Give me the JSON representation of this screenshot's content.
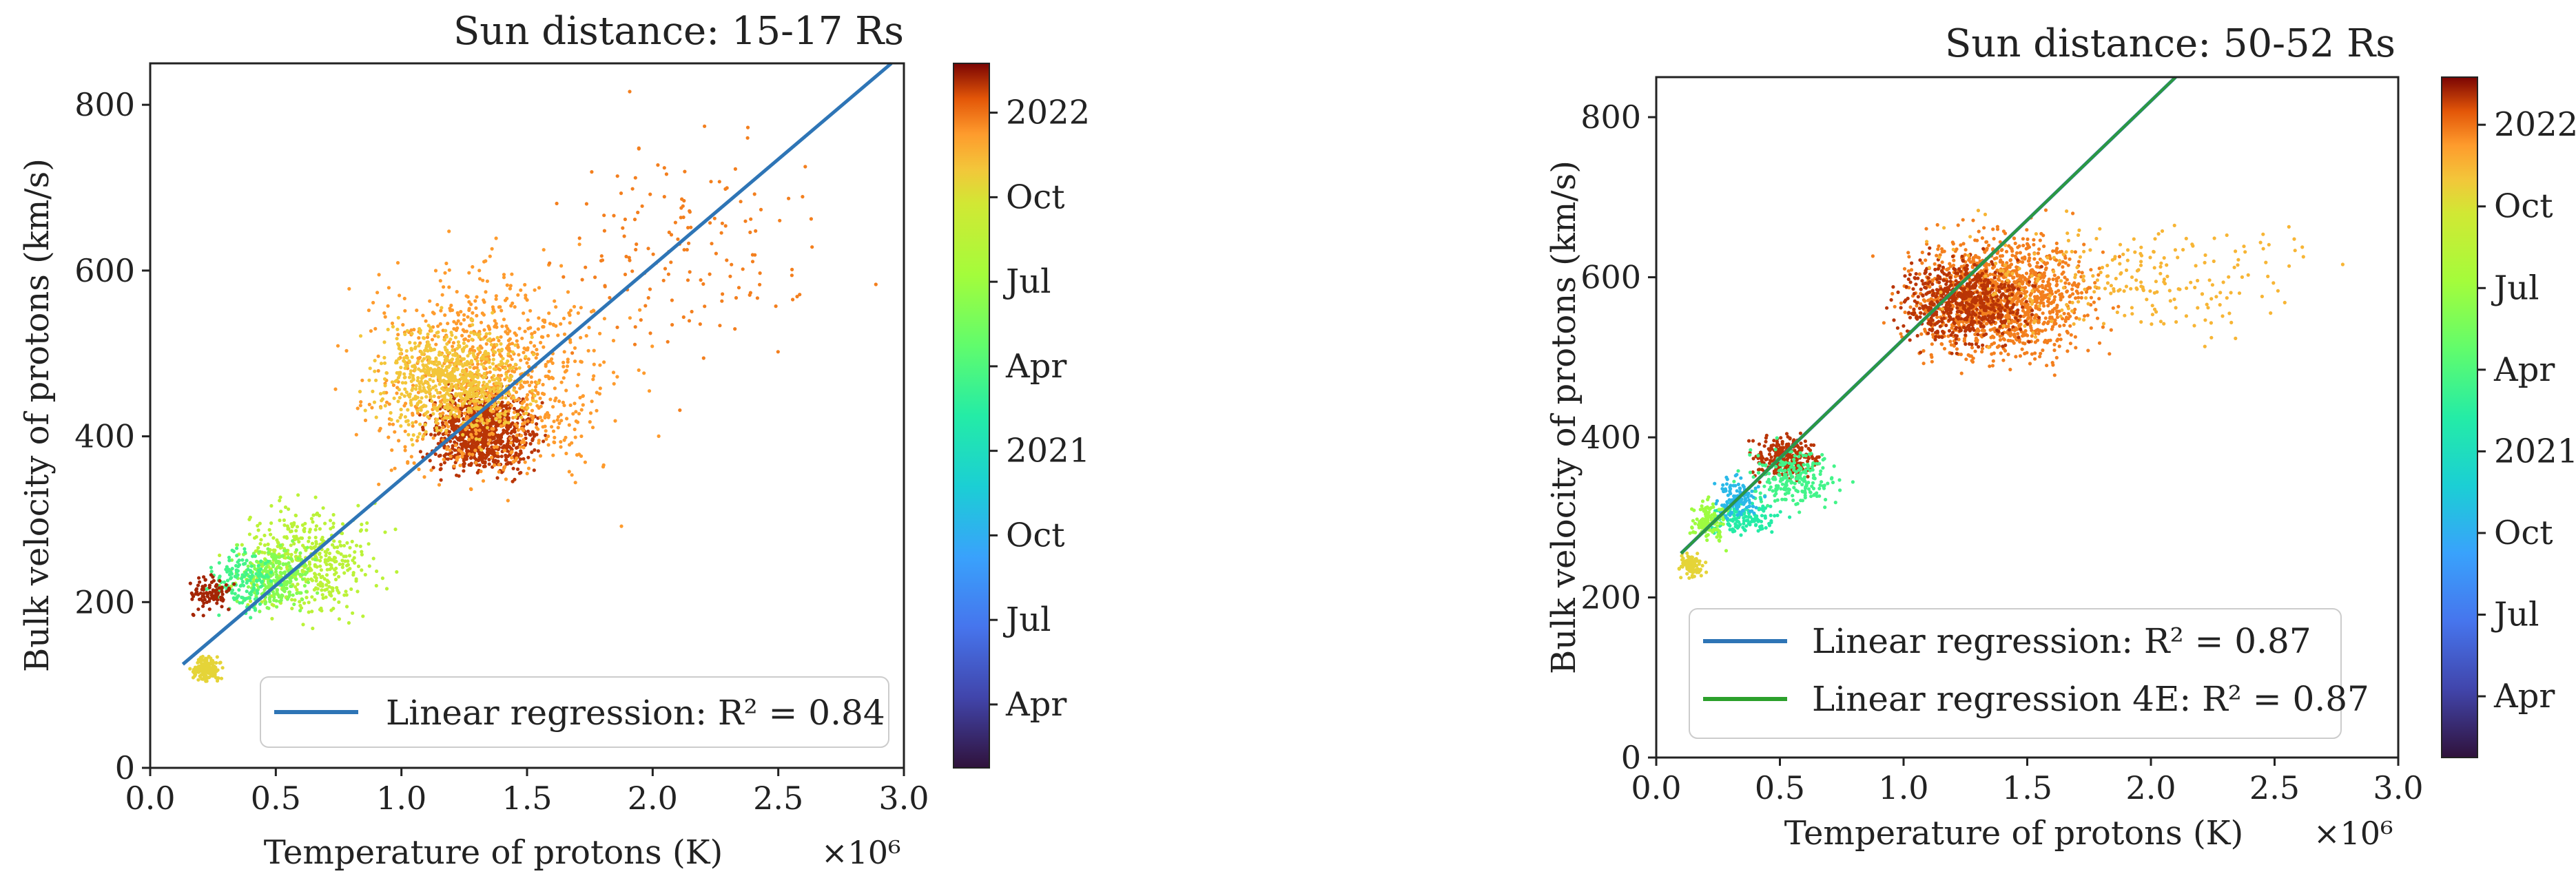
{
  "chart_data": [
    {
      "type": "scatter",
      "title": "Sun distance: 15-17 Rs",
      "xlabel": "Temperature of protons (K)",
      "ylabel": "Bulk velocity of protons (km/s)",
      "x_exponent_label": "×10⁶",
      "x_scale": 1000000,
      "xlim": [
        0.0,
        3.0
      ],
      "ylim": [
        0,
        850
      ],
      "xticks": [
        0.0,
        0.5,
        1.0,
        1.5,
        2.0,
        2.5,
        3.0
      ],
      "xtick_labels": [
        "0.0",
        "0.5",
        "1.0",
        "1.5",
        "2.0",
        "2.5",
        "3.0"
      ],
      "yticks": [
        0,
        200,
        400,
        600,
        800
      ],
      "ytick_labels": [
        "0",
        "200",
        "400",
        "600",
        "800"
      ],
      "grid": false,
      "legend_position": "lower-right",
      "legend": [
        {
          "label": "Linear regression: R² = 0.84",
          "color": "#2e75b6"
        }
      ],
      "regression_lines": [
        {
          "name": "Linear regression",
          "r2": 0.84,
          "color": "#2e75b6",
          "x": [
            0.13,
            2.95
          ],
          "y": [
            125,
            850
          ]
        }
      ],
      "colorbar": {
        "label_values": [
          0.09,
          0.21,
          0.33,
          0.45,
          0.57,
          0.69,
          0.81,
          0.93
        ],
        "labels": [
          "Apr",
          "Jul",
          "Oct",
          "2021",
          "Apr",
          "Jul",
          "Oct",
          "2022"
        ]
      },
      "clusters": [
        {
          "time": 0.97,
          "x": [
            1.05,
            1.6
          ],
          "y": [
            340,
            470
          ],
          "n": 900,
          "comment": "dense dark-red core"
        },
        {
          "time": 0.9,
          "x": [
            0.7,
            2.0
          ],
          "y": [
            300,
            650
          ],
          "n": 900
        },
        {
          "time": 0.85,
          "x": [
            0.8,
            1.6
          ],
          "y": [
            380,
            560
          ],
          "n": 700
        },
        {
          "time": 0.75,
          "x": [
            0.25,
            1.0
          ],
          "y": [
            160,
            340
          ],
          "n": 450
        },
        {
          "time": 0.65,
          "x": [
            0.3,
            0.7
          ],
          "y": [
            180,
            280
          ],
          "n": 250
        },
        {
          "time": 0.55,
          "x": [
            0.2,
            0.55
          ],
          "y": [
            170,
            280
          ],
          "n": 150
        },
        {
          "time": 0.83,
          "x": [
            0.15,
            0.3
          ],
          "y": [
            100,
            140
          ],
          "n": 150
        },
        {
          "time": 0.98,
          "x": [
            0.12,
            0.35
          ],
          "y": [
            180,
            240
          ],
          "n": 100
        },
        {
          "time": 0.92,
          "x": [
            1.4,
            2.9
          ],
          "y": [
            420,
            820
          ],
          "n": 150,
          "comment": "sparse outliers"
        }
      ]
    },
    {
      "type": "scatter",
      "title": "Sun distance: 50-52 Rs",
      "xlabel": "Temperature of protons (K)",
      "ylabel": "Bulk velocity of protons (km/s)",
      "x_exponent_label": "×10⁶",
      "x_scale": 1000000,
      "xlim": [
        0.0,
        3.0
      ],
      "ylim": [
        0,
        850
      ],
      "xticks": [
        0.0,
        0.5,
        1.0,
        1.5,
        2.0,
        2.5,
        3.0
      ],
      "xtick_labels": [
        "0.0",
        "0.5",
        "1.0",
        "1.5",
        "2.0",
        "2.5",
        "3.0"
      ],
      "yticks": [
        0,
        200,
        400,
        600,
        800
      ],
      "ytick_labels": [
        "0",
        "200",
        "400",
        "600",
        "800"
      ],
      "grid": false,
      "legend_position": "lower-left",
      "legend": [
        {
          "label": "Linear regression: R² = 0.87",
          "color": "#2e75b6"
        },
        {
          "label": "Linear regression 4E: R² = 0.87",
          "color": "#2ca02c"
        }
      ],
      "regression_lines": [
        {
          "name": "Linear regression",
          "r2": 0.87,
          "color": "#2e75b6",
          "x": [
            0.1,
            2.1
          ],
          "y": [
            255,
            850
          ]
        },
        {
          "name": "Linear regression 4E",
          "r2": 0.87,
          "color": "#2ca02c",
          "x": [
            0.1,
            2.1
          ],
          "y": [
            255,
            850
          ]
        }
      ],
      "colorbar": {
        "label_values": [
          0.09,
          0.21,
          0.33,
          0.45,
          0.57,
          0.69,
          0.81,
          0.93
        ],
        "labels": [
          "Apr",
          "Jul",
          "Oct",
          "2021",
          "Apr",
          "Jul",
          "Oct",
          "2022"
        ]
      },
      "clusters": [
        {
          "time": 0.92,
          "x": [
            0.9,
            1.9
          ],
          "y": [
            470,
            680
          ],
          "n": 1300,
          "comment": "main solar-wind cluster"
        },
        {
          "time": 0.97,
          "x": [
            0.9,
            1.6
          ],
          "y": [
            500,
            640
          ],
          "n": 600
        },
        {
          "time": 0.87,
          "x": [
            0.9,
            2.9
          ],
          "y": [
            500,
            700
          ],
          "n": 250,
          "comment": "sparse tail"
        },
        {
          "time": 0.97,
          "x": [
            0.35,
            0.7
          ],
          "y": [
            340,
            410
          ],
          "n": 300
        },
        {
          "time": 0.55,
          "x": [
            0.3,
            0.8
          ],
          "y": [
            300,
            400
          ],
          "n": 220
        },
        {
          "time": 0.5,
          "x": [
            0.15,
            0.55
          ],
          "y": [
            270,
            330
          ],
          "n": 150
        },
        {
          "time": 0.35,
          "x": [
            0.2,
            0.45
          ],
          "y": [
            290,
            360
          ],
          "n": 120
        },
        {
          "time": 0.69,
          "x": [
            0.12,
            0.3
          ],
          "y": [
            260,
            330
          ],
          "n": 120
        },
        {
          "time": 0.83,
          "x": [
            0.08,
            0.2
          ],
          "y": [
            220,
            260
          ],
          "n": 100
        }
      ]
    }
  ]
}
